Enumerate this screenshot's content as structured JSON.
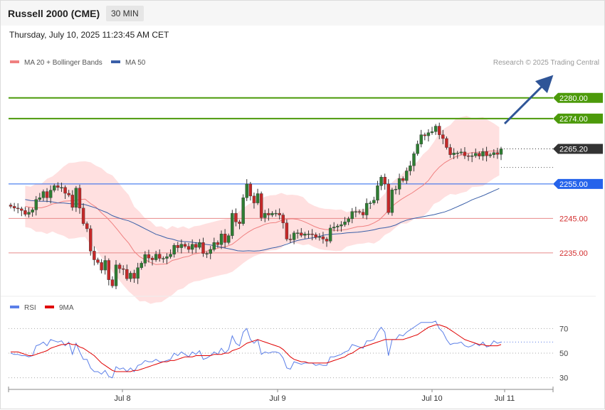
{
  "header": {
    "title": "Russell 2000 (CME)",
    "timeframe": "30 MIN"
  },
  "date_text": "Thursday, July 10, 2025 11:23:45 AM CET",
  "legend": {
    "ma20_label": "MA 20 + Bollinger Bands",
    "ma50_label": "MA 50",
    "credit": "Research © 2025 Trading Central"
  },
  "rsi_legend": {
    "rsi_label": "RSI",
    "ma_label": "9MA"
  },
  "colors": {
    "up": "#2e7d32",
    "down": "#c62828",
    "band": "#ffd6d6",
    "ma20": "#f08080",
    "ma50": "#3a5fa8",
    "target": "#4c9a0a",
    "pivot": "#2563eb",
    "support": "#d32f2f",
    "last": "#333333",
    "arrow": "#2f5597"
  },
  "chart_data": [
    {
      "type": "candlestick",
      "y_range": [
        2223,
        2288
      ],
      "x_ticks": [
        "Jul 8",
        "Jul 9",
        "Jul 10",
        "Jul 11"
      ],
      "levels": [
        {
          "value": 2280.0,
          "label": "2280.00",
          "kind": "target"
        },
        {
          "value": 2274.0,
          "label": "2274.00",
          "kind": "target"
        },
        {
          "value": 2265.2,
          "label": "2265.20",
          "kind": "last"
        },
        {
          "value": 2255.0,
          "label": "2255.00",
          "kind": "pivot"
        },
        {
          "value": 2245.0,
          "label": "2245.00",
          "kind": "support"
        },
        {
          "value": 2235.0,
          "label": "2235.00",
          "kind": "support"
        }
      ],
      "close": [
        2248.5,
        2248.0,
        2247.8,
        2247.3,
        2246.2,
        2246.8,
        2247.5,
        2250.5,
        2251.0,
        2252.8,
        2251.0,
        2253.2,
        2254.5,
        2254.0,
        2254.0,
        2252.3,
        2251.8,
        2248.2,
        2253.8,
        2248.0,
        2243.5,
        2242.0,
        2235.5,
        2233.0,
        2232.2,
        2230.0,
        2232.8,
        2227.2,
        2225.4,
        2231.5,
        2230.4,
        2230.2,
        2227.5,
        2229.1,
        2227.6,
        2230.7,
        2232.0,
        2234.5,
        2233.5,
        2233.0,
        2234.6,
        2233.4,
        2233.4,
        2233.9,
        2234.6,
        2237.2,
        2236.5,
        2237.5,
        2236.9,
        2236.0,
        2237.5,
        2236.6,
        2238.0,
        2234.8,
        2234.8,
        2236.0,
        2238.0,
        2237.4,
        2240.5,
        2238.0,
        2240.0,
        2246.5,
        2244.0,
        2243.5,
        2251.0,
        2255.0,
        2251.5,
        2249.5,
        2252.2,
        2245.2,
        2246.5,
        2246.0,
        2246.5,
        2246.5,
        2246.0,
        2243.7,
        2239.0,
        2238.8,
        2240.8,
        2240.8,
        2240.1,
        2240.5,
        2240.5,
        2240.3,
        2239.5,
        2239.7,
        2239.0,
        2238.4,
        2242.2,
        2242.5,
        2242.8,
        2243.2,
        2244.0,
        2244.9,
        2247.0,
        2247.0,
        2246.8,
        2246.0,
        2249.4,
        2249.5,
        2250.3,
        2254.5,
        2257.0,
        2255.0,
        2246.7,
        2253.3,
        2253.5,
        2256.6,
        2256.0,
        2258.8,
        2260.3,
        2263.8,
        2266.6,
        2269.3,
        2269.0,
        2269.9,
        2270.2,
        2271.8,
        2269.3,
        2268.2,
        2265.6,
        2263.5,
        2264.0,
        2264.0,
        2264.3,
        2263.2,
        2263.0,
        2263.2,
        2263.9,
        2263.1,
        2264.4,
        2263.2,
        2263.5,
        2264.1,
        2263.6,
        2265.2
      ],
      "ma20": [
        2248.5,
        2248.2,
        2248.1,
        2248.1,
        2248.5,
        2249.2,
        2249.5,
        2250.0,
        2250.1,
        2250.2,
        2250.5,
        2250.6,
        2249.3,
        2248.3,
        2246.6,
        2245.2,
        2243.5,
        2241.6,
        2239.6,
        2237.8,
        2235.4,
        2233.9,
        2233.0,
        2232.2,
        2231.6,
        2231.7,
        2231.8,
        2232.8,
        2233.2,
        2233.7,
        2234.0,
        2234.7,
        2234.9,
        2235.4,
        2235.8,
        2236.2,
        2236.6,
        2236.9,
        2237.5,
        2238.7,
        2240.0,
        2241.1,
        2242.0,
        2242.6,
        2243.3,
        2243.7,
        2243.8,
        2244.4,
        2244.8,
        2244.9,
        2244.7,
        2244.2,
        2243.5,
        2242.7,
        2242.1,
        2241.8,
        2241.7,
        2241.5,
        2241.6,
        2241.8,
        2242.2,
        2242.6,
        2242.7,
        2243.0,
        2243.7,
        2244.6,
        2246.2,
        2248.0,
        2249.4,
        2250.5,
        2251.5,
        2252.4,
        2253.5,
        2254.6,
        2256.0,
        2258.2,
        2259.9,
        2261.2,
        2262.1,
        2262.9,
        2263.4,
        2263.8,
        2264.1,
        2264.2,
        2264.4,
        2264.5,
        2264.6,
        2264.5,
        2264.6,
        2264.4,
        2263.8,
        2264.5
      ],
      "ma20_start_index": 4,
      "ma50": [
        2250.5,
        2250.2,
        2250.1,
        2250.0,
        2250.0,
        2249.8,
        2249.5,
        2249.5,
        2249.3,
        2249.2,
        2249.2,
        2249.0,
        2248.5,
        2248.0,
        2247.3,
        2246.7,
        2245.8,
        2245.2,
        2244.7,
        2244.3,
        2243.6,
        2242.8,
        2242.0,
        2241.2,
        2240.4,
        2239.9,
        2239.3,
        2239.0,
        2238.5,
        2238.3,
        2238.2,
        2238.0,
        2237.8,
        2237.5,
        2237.3,
        2237.0,
        2236.6,
        2236.3,
        2236.0,
        2235.6,
        2235.5,
        2235.6,
        2235.5,
        2235.6,
        2235.9,
        2236.3,
        2236.6,
        2237.0,
        2237.5,
        2238.1,
        2238.6,
        2238.9,
        2239.2,
        2239.4,
        2239.8,
        2240.2,
        2240.4,
        2240.5,
        2240.6,
        2240.8,
        2240.9,
        2241.0,
        2241.2,
        2241.4,
        2241.7,
        2242.1,
        2242.3,
        2242.6,
        2243.1,
        2243.9,
        2244.5,
        2244.9,
        2245.2,
        2245.5,
        2245.8,
        2246.1,
        2246.5,
        2246.9,
        2247.5,
        2248.2,
        2248.9,
        2249.6,
        2250.4,
        2251.0,
        2251.6,
        2252.3,
        2253.0,
        2253.7,
        2254.3,
        2254.9,
        2255.7,
        2256.3
      ],
      "ma50_start_index": 4,
      "bb_half_width": [
        6,
        6,
        7,
        7,
        8,
        8,
        9,
        10,
        11,
        11,
        11,
        11,
        12,
        12,
        13,
        13,
        14,
        14,
        14,
        14,
        13,
        13,
        12,
        12,
        11,
        11,
        10,
        10,
        9,
        9,
        8,
        8,
        8,
        8,
        8,
        8,
        8,
        8,
        8,
        8,
        8,
        8,
        8,
        8,
        8,
        8,
        8,
        8,
        7,
        7,
        7,
        7,
        6,
        6,
        6,
        6,
        6,
        6,
        6,
        5,
        5,
        5,
        5,
        5,
        6,
        6,
        6,
        7,
        7,
        7,
        8,
        8,
        8,
        9,
        9,
        9,
        10,
        10,
        10,
        11,
        11,
        11,
        10,
        10,
        10,
        9,
        8,
        7,
        6,
        5,
        4,
        3
      ],
      "bb_start_index": 4
    },
    {
      "type": "line",
      "name": "RSI",
      "y_ticks": [
        70,
        50,
        30
      ],
      "rsi": [
        50,
        49,
        49,
        48,
        48,
        47,
        48,
        56,
        57,
        59,
        56,
        61,
        60,
        59,
        60,
        56,
        59,
        49,
        58,
        51,
        45,
        45,
        38,
        35,
        35,
        33,
        36,
        31,
        30,
        39,
        37,
        38,
        35,
        38,
        35,
        40,
        41,
        44,
        43,
        43,
        45,
        43,
        43,
        44,
        45,
        50,
        48,
        51,
        49,
        47,
        51,
        49,
        52,
        45,
        46,
        48,
        51,
        49,
        54,
        50,
        53,
        64,
        58,
        56,
        67,
        70,
        61,
        58,
        61,
        49,
        51,
        50,
        51,
        51,
        50,
        46,
        38,
        37,
        43,
        42,
        41,
        42,
        42,
        42,
        40,
        41,
        40,
        40,
        47,
        47,
        48,
        49,
        51,
        52,
        57,
        56,
        55,
        54,
        60,
        60,
        61,
        67,
        71,
        67,
        48,
        61,
        61,
        65,
        64,
        67,
        69,
        71,
        73,
        75,
        75,
        75,
        75,
        76,
        70,
        67,
        61,
        57,
        58,
        58,
        59,
        56,
        55,
        56,
        58,
        56,
        59,
        55,
        56,
        60,
        58,
        59
      ],
      "rsi_ma": [
        51,
        51,
        51,
        50,
        49,
        48,
        48,
        49,
        50,
        51,
        52,
        54,
        55,
        56,
        57,
        57,
        58,
        57,
        57,
        55,
        54,
        52,
        50,
        48,
        45,
        42,
        40,
        38,
        36,
        35,
        35,
        35,
        35,
        35,
        36,
        36,
        37,
        38,
        39,
        40,
        41,
        42,
        43,
        43,
        44,
        44,
        45,
        46,
        47,
        47,
        47,
        48,
        48,
        48,
        48,
        48,
        49,
        49,
        49,
        50,
        50,
        52,
        53,
        54,
        56,
        58,
        59,
        60,
        61,
        60,
        59,
        58,
        57,
        56,
        55,
        53,
        50,
        47,
        45,
        44,
        43,
        43,
        42,
        42,
        42,
        42,
        42,
        42,
        43,
        44,
        45,
        46,
        47,
        49,
        50,
        52,
        54,
        55,
        56,
        57,
        58,
        59,
        60,
        61,
        61,
        61,
        61,
        61,
        61,
        62,
        63,
        64,
        65,
        67,
        69,
        71,
        72,
        73,
        73,
        72,
        71,
        69,
        67,
        65,
        63,
        61,
        60,
        59,
        58,
        57,
        57,
        56,
        56,
        56,
        56,
        57
      ]
    }
  ]
}
